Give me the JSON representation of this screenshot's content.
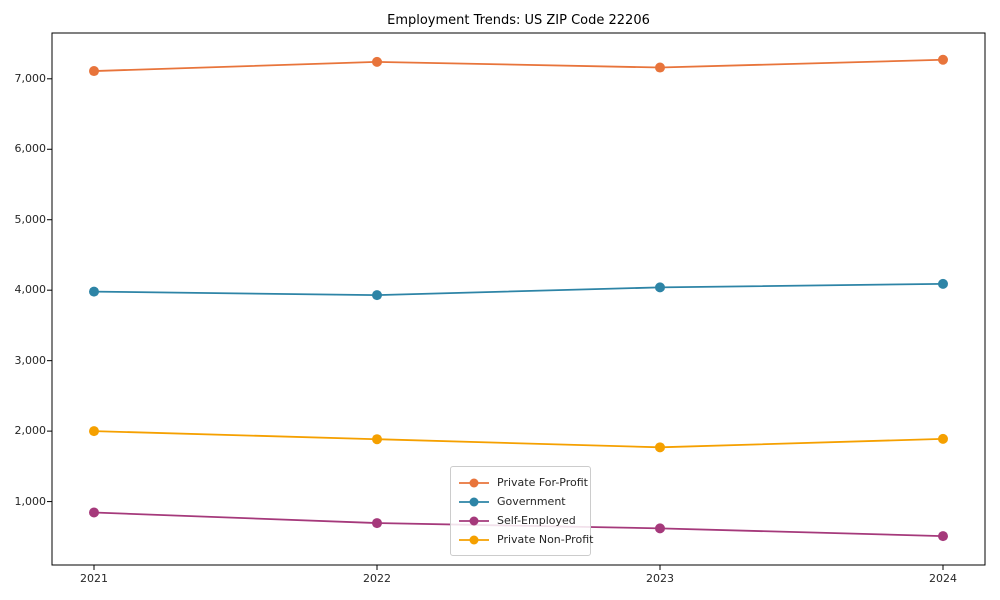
{
  "chart_data": {
    "type": "line",
    "title": "Employment Trends: US ZIP Code 22206",
    "categories": [
      "2021",
      "2022",
      "2023",
      "2024"
    ],
    "y_ticks": [
      1000,
      2000,
      3000,
      4000,
      5000,
      6000,
      7000
    ],
    "y_tick_labels": [
      "1,000",
      "2,000",
      "3,000",
      "4,000",
      "5,000",
      "6,000",
      "7,000"
    ],
    "ylim": [
      100,
      7650
    ],
    "grid": false,
    "legend_position": "lower-center-inside",
    "series": [
      {
        "name": "Private For-Profit",
        "color": "#e8743b",
        "values": [
          7110,
          7240,
          7160,
          7270
        ]
      },
      {
        "name": "Government",
        "color": "#2d84a6",
        "values": [
          3980,
          3930,
          4040,
          4090
        ]
      },
      {
        "name": "Self-Employed",
        "color": "#a5397b",
        "values": [
          845,
          695,
          620,
          510
        ]
      },
      {
        "name": "Private Non-Profit",
        "color": "#f5a000",
        "values": [
          2000,
          1885,
          1770,
          1890
        ]
      }
    ]
  }
}
